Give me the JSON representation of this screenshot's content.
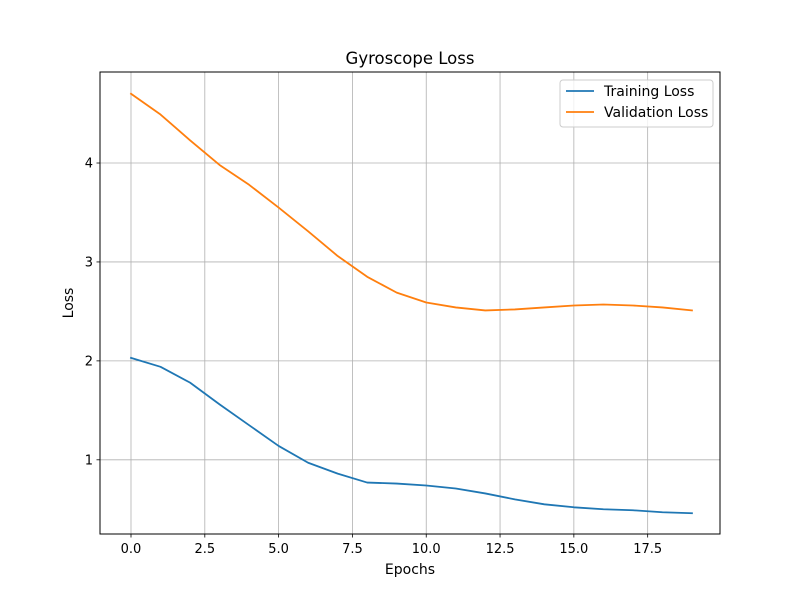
{
  "chart_data": {
    "type": "line",
    "title": "Gyroscope Loss",
    "xlabel": "Epochs",
    "ylabel": "Loss",
    "xlim": [
      -1.05,
      19.95
    ],
    "ylim": [
      0.25,
      4.92
    ],
    "xticks": [
      0,
      2.5,
      5,
      7.5,
      10,
      12.5,
      15,
      17.5
    ],
    "xtick_labels": [
      "0.0",
      "2.5",
      "5.0",
      "7.5",
      "10.0",
      "12.5",
      "15.0",
      "17.5"
    ],
    "yticks": [
      1,
      2,
      3,
      4
    ],
    "ytick_labels": [
      "1",
      "2",
      "3",
      "4"
    ],
    "grid": true,
    "legend_position": "top-right",
    "x": [
      0,
      1,
      2,
      3,
      4,
      5,
      6,
      7,
      8,
      9,
      10,
      11,
      12,
      13,
      14,
      15,
      16,
      17,
      18,
      19
    ],
    "series": [
      {
        "name": "Training Loss",
        "color": "#1f77b4",
        "values": [
          2.03,
          1.94,
          1.78,
          1.56,
          1.35,
          1.14,
          0.97,
          0.86,
          0.77,
          0.76,
          0.74,
          0.71,
          0.66,
          0.6,
          0.55,
          0.52,
          0.5,
          0.49,
          0.47,
          0.46
        ]
      },
      {
        "name": "Validation Loss",
        "color": "#ff7f0e",
        "values": [
          4.7,
          4.49,
          4.23,
          3.98,
          3.78,
          3.55,
          3.31,
          3.06,
          2.85,
          2.69,
          2.59,
          2.54,
          2.51,
          2.52,
          2.54,
          2.56,
          2.57,
          2.56,
          2.54,
          2.51
        ]
      }
    ]
  }
}
